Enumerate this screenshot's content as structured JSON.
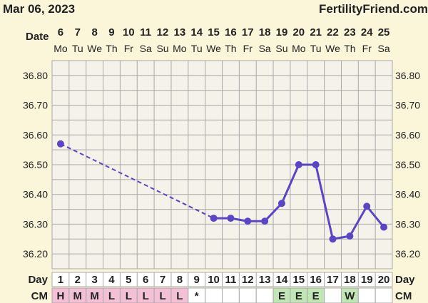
{
  "header": {
    "date": "Mar 06, 2023",
    "site": "FertilityFriend.com"
  },
  "labels": {
    "date_row": "Date",
    "day_row": "Day",
    "cm_row": "CM"
  },
  "dates": [
    "6",
    "7",
    "8",
    "9",
    "10",
    "11",
    "12",
    "13",
    "14",
    "15",
    "16",
    "17",
    "18",
    "19",
    "20",
    "21",
    "22",
    "23",
    "24",
    "25"
  ],
  "weekdays": [
    "Mo",
    "Tu",
    "We",
    "Th",
    "Fr",
    "Sa",
    "Su",
    "Mo",
    "Tu",
    "We",
    "Th",
    "Fr",
    "Sa",
    "Su",
    "Mo",
    "Tu",
    "We",
    "Th",
    "Fr",
    "Sa"
  ],
  "days": [
    "1",
    "2",
    "3",
    "4",
    "5",
    "6",
    "7",
    "8",
    "9",
    "10",
    "11",
    "12",
    "13",
    "14",
    "15",
    "16",
    "17",
    "18",
    "19",
    "20"
  ],
  "cm": [
    "H",
    "M",
    "M",
    "L",
    "L",
    "L",
    "L",
    "L",
    "*",
    "",
    "",
    "",
    "",
    "E",
    "E",
    "E",
    "",
    "W",
    "",
    ""
  ],
  "colors": {
    "line": "#5b45c7",
    "grid": "#a8a8a8",
    "plot_bg": "#f4f2e9",
    "page_bg": "#fbf6d9",
    "cm_pink": "#f4c0d6",
    "cm_green": "#bfe6b4"
  },
  "chart_data": {
    "type": "line",
    "ylim": [
      36.15,
      36.85
    ],
    "yticks": [
      "36.80",
      "36.70",
      "36.60",
      "36.50",
      "36.40",
      "36.30",
      "36.20"
    ],
    "x": [
      1,
      2,
      3,
      4,
      5,
      6,
      7,
      8,
      9,
      10,
      11,
      12,
      13,
      14,
      15,
      16,
      17,
      18,
      19,
      20
    ],
    "values": [
      36.57,
      null,
      null,
      null,
      null,
      null,
      null,
      null,
      null,
      36.32,
      36.32,
      36.31,
      36.31,
      36.37,
      36.5,
      36.5,
      36.25,
      36.26,
      36.36,
      36.29
    ],
    "dashed_gap": true
  }
}
